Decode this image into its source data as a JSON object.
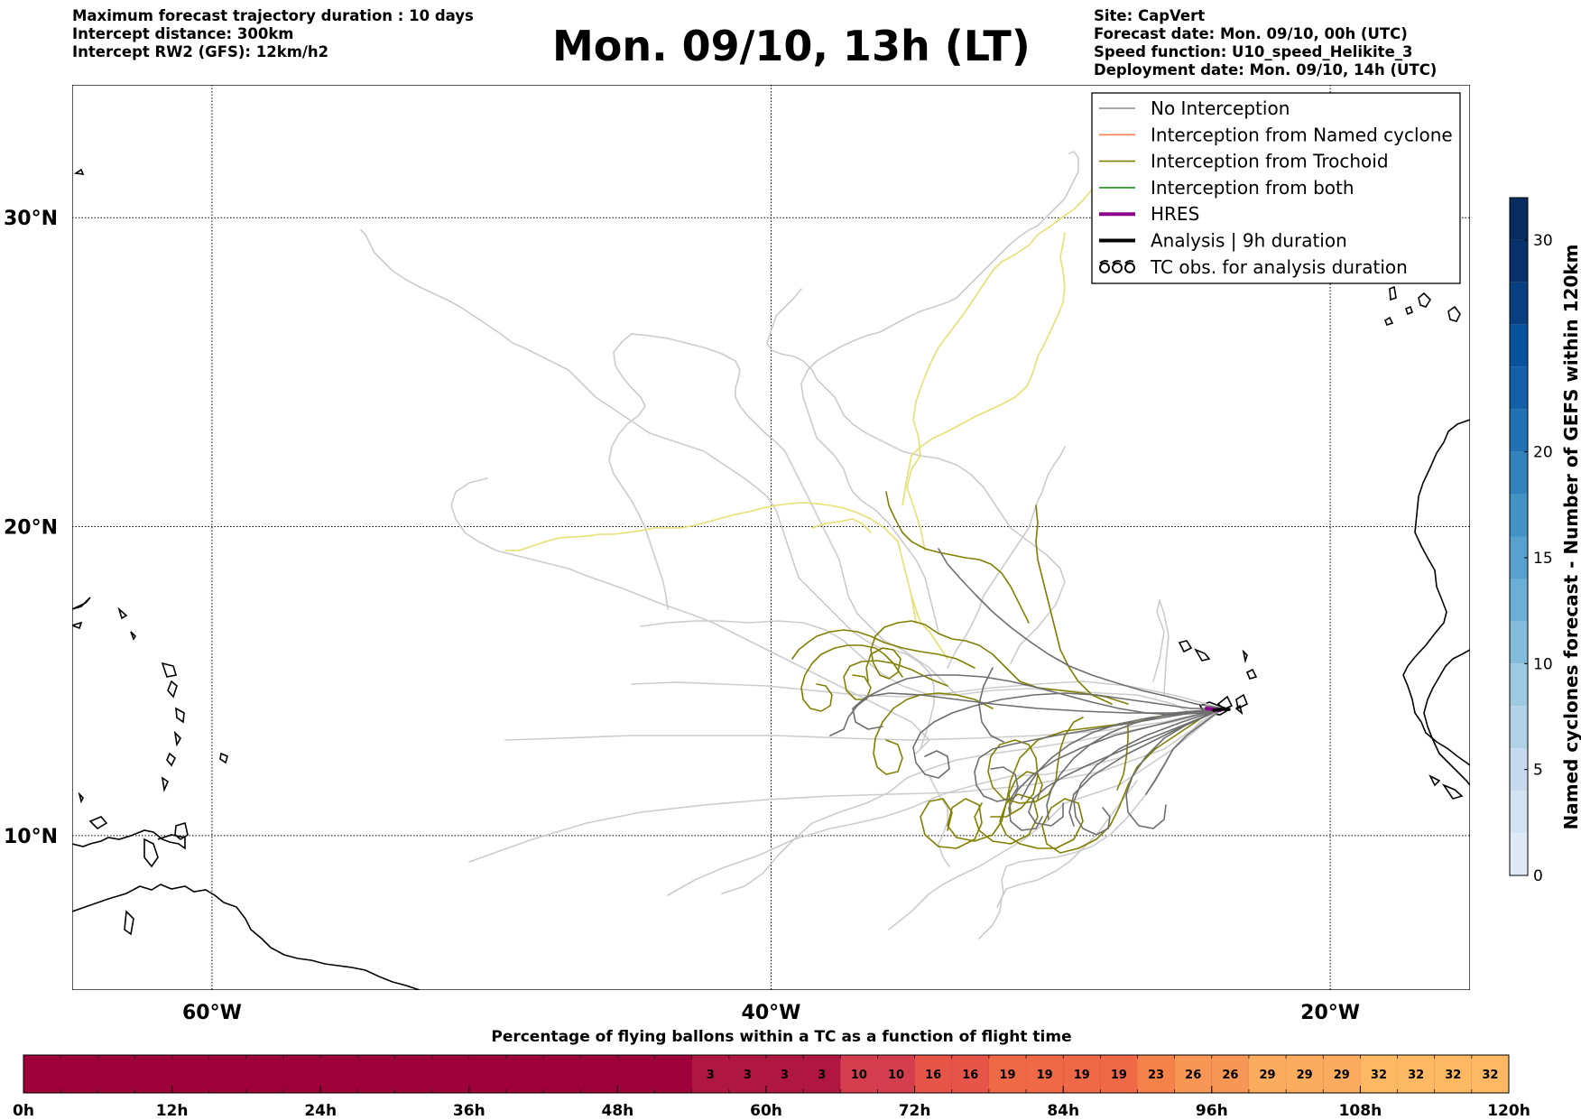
{
  "header": {
    "left_lines": [
      "Maximum forecast trajectory duration : 10 days",
      "Intercept distance: 300km",
      "Intercept RW2 (GFS):  12km/h2"
    ],
    "title": "Mon. 09/10, 13h (LT)",
    "right_lines": [
      "Site: CapVert",
      "Forecast date: Mon. 09/10, 00h (UTC)",
      "Speed function: U10_speed_Helikite_3",
      "Deployment date: Mon. 09/10, 14h (UTC)"
    ]
  },
  "map": {
    "lon_range": [
      -65,
      -15
    ],
    "lat_range": [
      5,
      34.3
    ],
    "lat_labels": [
      "30°N",
      "20°N",
      "10°N"
    ],
    "lat_values": [
      30,
      20,
      10
    ],
    "lon_labels": [
      "60°W",
      "40°W",
      "20°W"
    ],
    "lon_values": [
      -60,
      -40,
      -20
    ],
    "grid": "dotted"
  },
  "legend": {
    "items": [
      {
        "label": "No Interception",
        "color": "#888888",
        "style": "line"
      },
      {
        "label": "Interception from Named cyclone",
        "color": "#ff7f50",
        "style": "line"
      },
      {
        "label": "Interception from Trochoid",
        "color": "#808000",
        "style": "line"
      },
      {
        "label": "Interception from both",
        "color": "#228b22",
        "style": "line"
      },
      {
        "label": "HRES",
        "color": "#8b008b",
        "style": "thick"
      },
      {
        "label": "Analysis | 9h duration",
        "color": "#000000",
        "style": "thick"
      },
      {
        "label": "TC obs. for analysis duration",
        "color": "#000000",
        "style": "cyclone-icons"
      }
    ]
  },
  "colorbar": {
    "label": "Named cyclones forecast - Number of GEFS within 120km",
    "ticks": [
      "0",
      "5",
      "10",
      "15",
      "20",
      "30"
    ],
    "tick_values": [
      0,
      5,
      10,
      15,
      20,
      30
    ],
    "max": 32
  },
  "bottom_bar": {
    "title": "Percentage of flying ballons within a TC as a function of flight time",
    "hour_labels": [
      "0h",
      "12h",
      "24h",
      "36h",
      "48h",
      "60h",
      "72h",
      "84h",
      "96h",
      "108h",
      "120h"
    ],
    "cells": [
      {
        "start": 54,
        "end": 57,
        "value": "3"
      },
      {
        "start": 57,
        "end": 60,
        "value": "3"
      },
      {
        "start": 60,
        "end": 63,
        "value": "3"
      },
      {
        "start": 63,
        "end": 66,
        "value": "3"
      },
      {
        "start": 66,
        "end": 69,
        "value": "10"
      },
      {
        "start": 69,
        "end": 72,
        "value": "10"
      },
      {
        "start": 72,
        "end": 75,
        "value": "16"
      },
      {
        "start": 75,
        "end": 78,
        "value": "16"
      },
      {
        "start": 78,
        "end": 81,
        "value": "19"
      },
      {
        "start": 81,
        "end": 84,
        "value": "19"
      },
      {
        "start": 84,
        "end": 87,
        "value": "19"
      },
      {
        "start": 87,
        "end": 90,
        "value": "19"
      },
      {
        "start": 90,
        "end": 93,
        "value": "23"
      },
      {
        "start": 93,
        "end": 96,
        "value": "26"
      },
      {
        "start": 96,
        "end": 99,
        "value": "26"
      },
      {
        "start": 99,
        "end": 102,
        "value": "29"
      },
      {
        "start": 102,
        "end": 105,
        "value": "29"
      },
      {
        "start": 105,
        "end": 108,
        "value": "29"
      },
      {
        "start": 108,
        "end": 111,
        "value": "32"
      },
      {
        "start": 111,
        "end": 114,
        "value": "32"
      },
      {
        "start": 114,
        "end": 117,
        "value": "32"
      },
      {
        "start": 117,
        "end": 120,
        "value": "32"
      }
    ]
  }
}
